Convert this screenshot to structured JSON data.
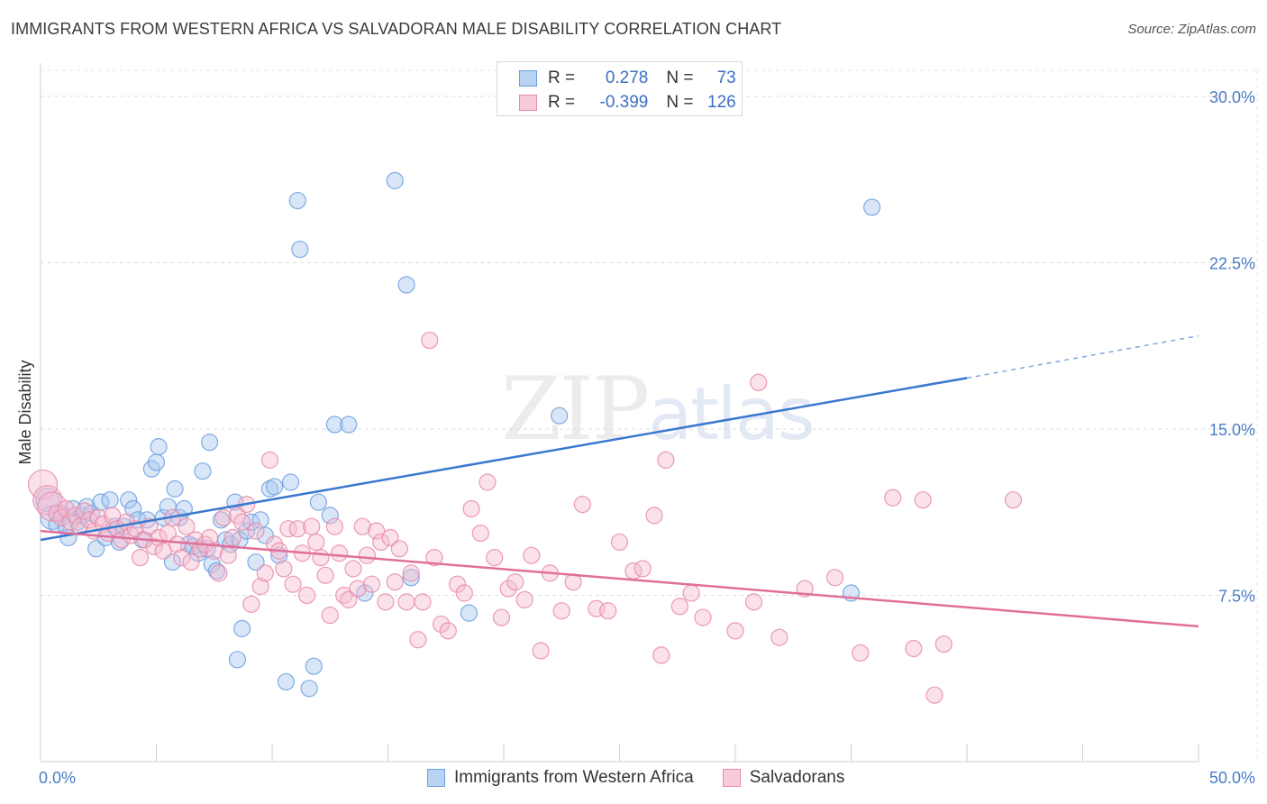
{
  "header": {
    "title": "IMMIGRANTS FROM WESTERN AFRICA VS SALVADORAN MALE DISABILITY CORRELATION CHART",
    "source": "Source: ZipAtlas.com"
  },
  "legend_top": {
    "rows": [
      {
        "r_label": "R = ",
        "r_value": "0.278",
        "n_label": "N = ",
        "n_value": "73"
      },
      {
        "r_label": "R = ",
        "r_value": "-0.399",
        "n_label": "N = ",
        "n_value": "126"
      }
    ]
  },
  "watermark": {
    "zip": "ZIP",
    "atlas": "atlas"
  },
  "chart_data": {
    "type": "scatter",
    "ylabel": "Male Disability",
    "xlim": [
      0,
      50
    ],
    "ylim": [
      0,
      31.5
    ],
    "x_tick_labels": [
      "0.0%",
      "50.0%"
    ],
    "y_ticks": [
      7.5,
      15.0,
      22.5,
      30.0
    ],
    "y_tick_labels": [
      "7.5%",
      "15.0%",
      "22.5%",
      "30.0%"
    ],
    "grid": true,
    "series": [
      {
        "name": "Immigrants from Western Africa",
        "color": "#6a9ee0",
        "fill": "#a9c8ef",
        "trend": {
          "x0": 0,
          "y0": 10.0,
          "x1": 40.0,
          "y1": 17.3,
          "dash_to": 50.0,
          "dash_y": 19.2
        },
        "points": [
          [
            0.3,
            11.8
          ],
          [
            0.5,
            11.0
          ],
          [
            0.7,
            10.7
          ],
          [
            0.9,
            11.2
          ],
          [
            1.1,
            10.6
          ],
          [
            1.2,
            10.1
          ],
          [
            1.4,
            11.4
          ],
          [
            1.6,
            10.8
          ],
          [
            1.8,
            11.1
          ],
          [
            2.0,
            11.5
          ],
          [
            2.2,
            11.2
          ],
          [
            2.4,
            9.6
          ],
          [
            2.6,
            11.7
          ],
          [
            2.8,
            10.1
          ],
          [
            3.0,
            11.8
          ],
          [
            3.2,
            10.6
          ],
          [
            3.4,
            9.9
          ],
          [
            3.6,
            10.6
          ],
          [
            3.8,
            11.8
          ],
          [
            4.0,
            11.4
          ],
          [
            4.2,
            10.9
          ],
          [
            4.4,
            10.0
          ],
          [
            4.6,
            10.9
          ],
          [
            4.8,
            13.2
          ],
          [
            5.0,
            13.5
          ],
          [
            5.1,
            14.2
          ],
          [
            5.3,
            11.0
          ],
          [
            5.5,
            11.5
          ],
          [
            5.7,
            9.0
          ],
          [
            5.8,
            12.3
          ],
          [
            6.0,
            11.0
          ],
          [
            6.2,
            11.4
          ],
          [
            6.4,
            9.8
          ],
          [
            6.6,
            9.7
          ],
          [
            6.8,
            9.4
          ],
          [
            7.0,
            13.1
          ],
          [
            7.2,
            9.6
          ],
          [
            7.3,
            14.4
          ],
          [
            7.4,
            8.9
          ],
          [
            7.6,
            8.6
          ],
          [
            7.8,
            10.9
          ],
          [
            8.0,
            10.0
          ],
          [
            8.2,
            9.8
          ],
          [
            8.4,
            11.7
          ],
          [
            8.5,
            4.6
          ],
          [
            8.6,
            10.0
          ],
          [
            8.7,
            6.0
          ],
          [
            8.9,
            10.4
          ],
          [
            9.1,
            10.8
          ],
          [
            9.3,
            9.0
          ],
          [
            9.5,
            10.9
          ],
          [
            9.7,
            10.2
          ],
          [
            9.9,
            12.3
          ],
          [
            10.1,
            12.4
          ],
          [
            10.3,
            9.3
          ],
          [
            10.6,
            3.6
          ],
          [
            10.8,
            12.6
          ],
          [
            11.1,
            25.3
          ],
          [
            11.2,
            23.1
          ],
          [
            11.6,
            3.3
          ],
          [
            11.8,
            4.3
          ],
          [
            12.0,
            11.7
          ],
          [
            12.5,
            11.1
          ],
          [
            12.7,
            15.2
          ],
          [
            13.3,
            15.2
          ],
          [
            14.0,
            7.6
          ],
          [
            15.3,
            26.2
          ],
          [
            15.8,
            21.5
          ],
          [
            16.0,
            8.3
          ],
          [
            18.5,
            6.7
          ],
          [
            22.4,
            15.6
          ],
          [
            35.0,
            7.6
          ],
          [
            35.9,
            25.0
          ]
        ]
      },
      {
        "name": "Salvadorans",
        "color": "#e88aa8",
        "fill": "#f5bcd0",
        "trend": {
          "x0": 0,
          "y0": 10.4,
          "x1": 50.0,
          "y1": 6.1
        },
        "points": [
          [
            0.1,
            12.5
          ],
          [
            0.3,
            11.8
          ],
          [
            0.5,
            11.5
          ],
          [
            0.7,
            11.2
          ],
          [
            0.9,
            11.0
          ],
          [
            1.1,
            11.4
          ],
          [
            1.3,
            10.8
          ],
          [
            1.5,
            11.1
          ],
          [
            1.7,
            10.6
          ],
          [
            1.9,
            11.3
          ],
          [
            2.1,
            10.9
          ],
          [
            2.3,
            10.4
          ],
          [
            2.5,
            11.0
          ],
          [
            2.7,
            10.7
          ],
          [
            2.9,
            10.3
          ],
          [
            3.1,
            11.1
          ],
          [
            3.3,
            10.5
          ],
          [
            3.5,
            10.0
          ],
          [
            3.7,
            10.8
          ],
          [
            3.9,
            10.2
          ],
          [
            4.1,
            10.5
          ],
          [
            4.3,
            9.2
          ],
          [
            4.5,
            10.0
          ],
          [
            4.7,
            10.6
          ],
          [
            4.9,
            9.7
          ],
          [
            5.1,
            10.1
          ],
          [
            5.3,
            9.5
          ],
          [
            5.5,
            10.3
          ],
          [
            5.7,
            11.0
          ],
          [
            5.9,
            9.8
          ],
          [
            6.1,
            9.2
          ],
          [
            6.3,
            10.6
          ],
          [
            6.5,
            9.0
          ],
          [
            6.7,
            10.0
          ],
          [
            6.9,
            9.6
          ],
          [
            7.1,
            9.8
          ],
          [
            7.3,
            10.1
          ],
          [
            7.5,
            9.5
          ],
          [
            7.7,
            8.5
          ],
          [
            7.9,
            11.0
          ],
          [
            8.1,
            9.3
          ],
          [
            8.3,
            10.1
          ],
          [
            8.5,
            11.1
          ],
          [
            8.7,
            10.8
          ],
          [
            8.9,
            11.6
          ],
          [
            9.1,
            7.1
          ],
          [
            9.3,
            10.4
          ],
          [
            9.5,
            7.9
          ],
          [
            9.7,
            8.5
          ],
          [
            9.9,
            13.6
          ],
          [
            10.1,
            9.8
          ],
          [
            10.3,
            9.5
          ],
          [
            10.5,
            8.7
          ],
          [
            10.7,
            10.5
          ],
          [
            10.9,
            8.0
          ],
          [
            11.1,
            10.5
          ],
          [
            11.3,
            9.4
          ],
          [
            11.5,
            7.5
          ],
          [
            11.7,
            10.6
          ],
          [
            11.9,
            9.9
          ],
          [
            12.1,
            9.2
          ],
          [
            12.3,
            8.4
          ],
          [
            12.5,
            6.6
          ],
          [
            12.7,
            10.6
          ],
          [
            12.9,
            9.4
          ],
          [
            13.1,
            7.5
          ],
          [
            13.3,
            7.3
          ],
          [
            13.5,
            8.7
          ],
          [
            13.7,
            7.8
          ],
          [
            13.9,
            10.6
          ],
          [
            14.1,
            9.3
          ],
          [
            14.3,
            8.0
          ],
          [
            14.5,
            10.4
          ],
          [
            14.7,
            9.9
          ],
          [
            14.9,
            7.2
          ],
          [
            15.1,
            10.1
          ],
          [
            15.3,
            8.1
          ],
          [
            15.5,
            9.6
          ],
          [
            15.8,
            7.2
          ],
          [
            16.0,
            8.5
          ],
          [
            16.3,
            5.5
          ],
          [
            16.5,
            7.2
          ],
          [
            16.8,
            19.0
          ],
          [
            17.0,
            9.2
          ],
          [
            17.3,
            6.2
          ],
          [
            17.6,
            5.9
          ],
          [
            18.0,
            8.0
          ],
          [
            18.3,
            7.6
          ],
          [
            18.6,
            11.4
          ],
          [
            19.0,
            10.3
          ],
          [
            19.3,
            12.6
          ],
          [
            19.6,
            9.2
          ],
          [
            19.9,
            6.5
          ],
          [
            20.2,
            7.8
          ],
          [
            20.5,
            8.1
          ],
          [
            20.9,
            7.3
          ],
          [
            21.2,
            9.3
          ],
          [
            21.6,
            5.0
          ],
          [
            22.0,
            8.5
          ],
          [
            22.5,
            6.8
          ],
          [
            23.0,
            8.1
          ],
          [
            23.4,
            11.6
          ],
          [
            24.0,
            6.9
          ],
          [
            24.5,
            6.8
          ],
          [
            25.0,
            9.9
          ],
          [
            25.6,
            8.6
          ],
          [
            26.0,
            8.7
          ],
          [
            26.5,
            11.1
          ],
          [
            27.0,
            13.6
          ],
          [
            27.6,
            7.0
          ],
          [
            28.1,
            7.6
          ],
          [
            28.6,
            6.5
          ],
          [
            30.0,
            5.9
          ],
          [
            30.8,
            7.2
          ],
          [
            31.0,
            17.1
          ],
          [
            31.9,
            5.6
          ],
          [
            33.0,
            7.8
          ],
          [
            34.3,
            8.3
          ],
          [
            35.4,
            4.9
          ],
          [
            36.8,
            11.9
          ],
          [
            37.7,
            5.1
          ],
          [
            38.1,
            11.8
          ],
          [
            38.6,
            3.0
          ],
          [
            39.0,
            5.3
          ],
          [
            42.0,
            11.8
          ],
          [
            26.8,
            4.8
          ]
        ]
      }
    ]
  }
}
